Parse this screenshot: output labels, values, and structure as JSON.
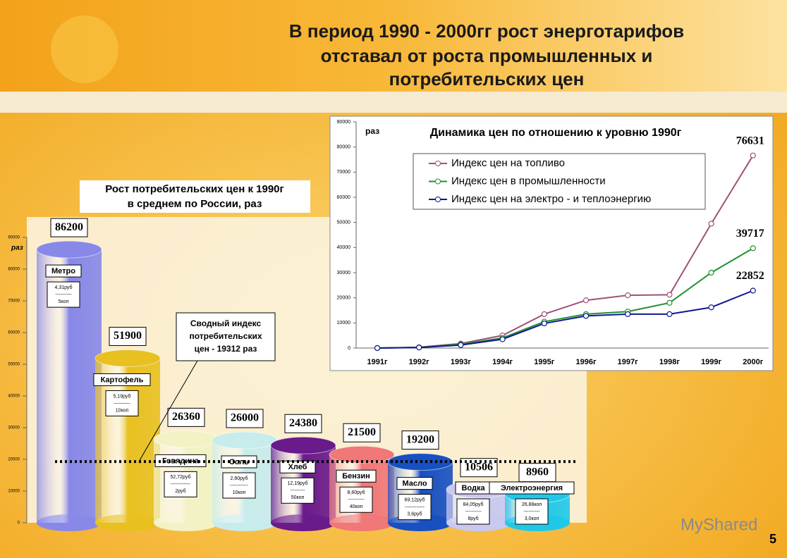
{
  "header": {
    "title_lines": [
      "В период 1990 - 2000гг рост энерготарифов",
      "отставал от роста промышленных и",
      "потребительских цен"
    ]
  },
  "page_number": "5",
  "watermark": "MyShared",
  "chart_data": [
    {
      "type": "bar",
      "title_lines": [
        "Рост потребительских цен к 1990г",
        "в среднем по России, раз"
      ],
      "y_label": "раз",
      "categories": [
        "Метро",
        "Картофель",
        "Говядина",
        "Соль",
        "Хлеб",
        "Бензин",
        "Масло",
        "Водка",
        "Электроэнергия"
      ],
      "values": [
        86200,
        51900,
        26360,
        26000,
        24380,
        21500,
        19200,
        10506,
        8960
      ],
      "colors": [
        "#8888e8",
        "#e8c020",
        "#f2f2c4",
        "#c8ecec",
        "#6a1a8a",
        "#f07878",
        "#1850c0",
        "#c8c8f0",
        "#20c8e8"
      ],
      "notes": [
        [
          "4,31руб",
          "----------",
          "5коп"
        ],
        [
          "5,19руб",
          "----------",
          "10коп"
        ],
        [
          "52,72руб",
          "------------",
          "2руб"
        ],
        [
          "2,60руб",
          "-----------",
          "10коп"
        ],
        [
          "12,19руб",
          "---------",
          "50коп"
        ],
        [
          "8,60руб",
          "----------",
          "40коп"
        ],
        [
          "69,12руб",
          "------------",
          "3,6руб"
        ],
        [
          "84,05руб",
          "----------",
          "8руб"
        ],
        [
          "26,88коп",
          "----------",
          "3,0коп"
        ]
      ],
      "ylim": [
        0,
        90000
      ],
      "yticks": [
        0,
        10000,
        20000,
        30000,
        40000,
        50000,
        60000,
        70000,
        80000,
        90000
      ],
      "reference_line": {
        "value": 19312,
        "label_lines": [
          "Сводный индекс",
          "потребительских",
          "цен - 19312 раз"
        ]
      }
    },
    {
      "type": "line",
      "title": "Динамика цен по отношению к уровню 1990г",
      "y_label": "раз",
      "categories": [
        "1991г",
        "1992г",
        "1993г",
        "1994г",
        "1995г",
        "1996г",
        "1997г",
        "1998г",
        "1999г",
        "2000г"
      ],
      "series": [
        {
          "name": "Индекс цен на топливо",
          "color": "#a05078",
          "values": [
            0,
            300,
            1800,
            5000,
            13500,
            19000,
            21000,
            21200,
            49500,
            76631
          ],
          "value_labels": [
            null,
            null,
            null,
            null,
            null,
            null,
            null,
            null,
            null,
            "76631"
          ]
        },
        {
          "name": "Индекс цен в промышленности",
          "color": "#209030",
          "values": [
            0,
            250,
            1500,
            4000,
            10500,
            13500,
            14500,
            18000,
            30000,
            39717
          ],
          "value_labels": [
            null,
            null,
            null,
            null,
            null,
            null,
            null,
            null,
            null,
            "39717"
          ]
        },
        {
          "name": "Индекс цен на электро - и теплоэнергию",
          "color": "#101890",
          "values": [
            0,
            200,
            1200,
            3500,
            9800,
            12800,
            13500,
            13500,
            16200,
            22852
          ],
          "value_labels": [
            null,
            null,
            null,
            null,
            null,
            null,
            null,
            null,
            null,
            "22852"
          ]
        }
      ],
      "ylim": [
        0,
        90000
      ],
      "yticks": [
        0,
        10000,
        20000,
        30000,
        40000,
        50000,
        60000,
        70000,
        80000,
        90000
      ],
      "legend": "top"
    }
  ]
}
